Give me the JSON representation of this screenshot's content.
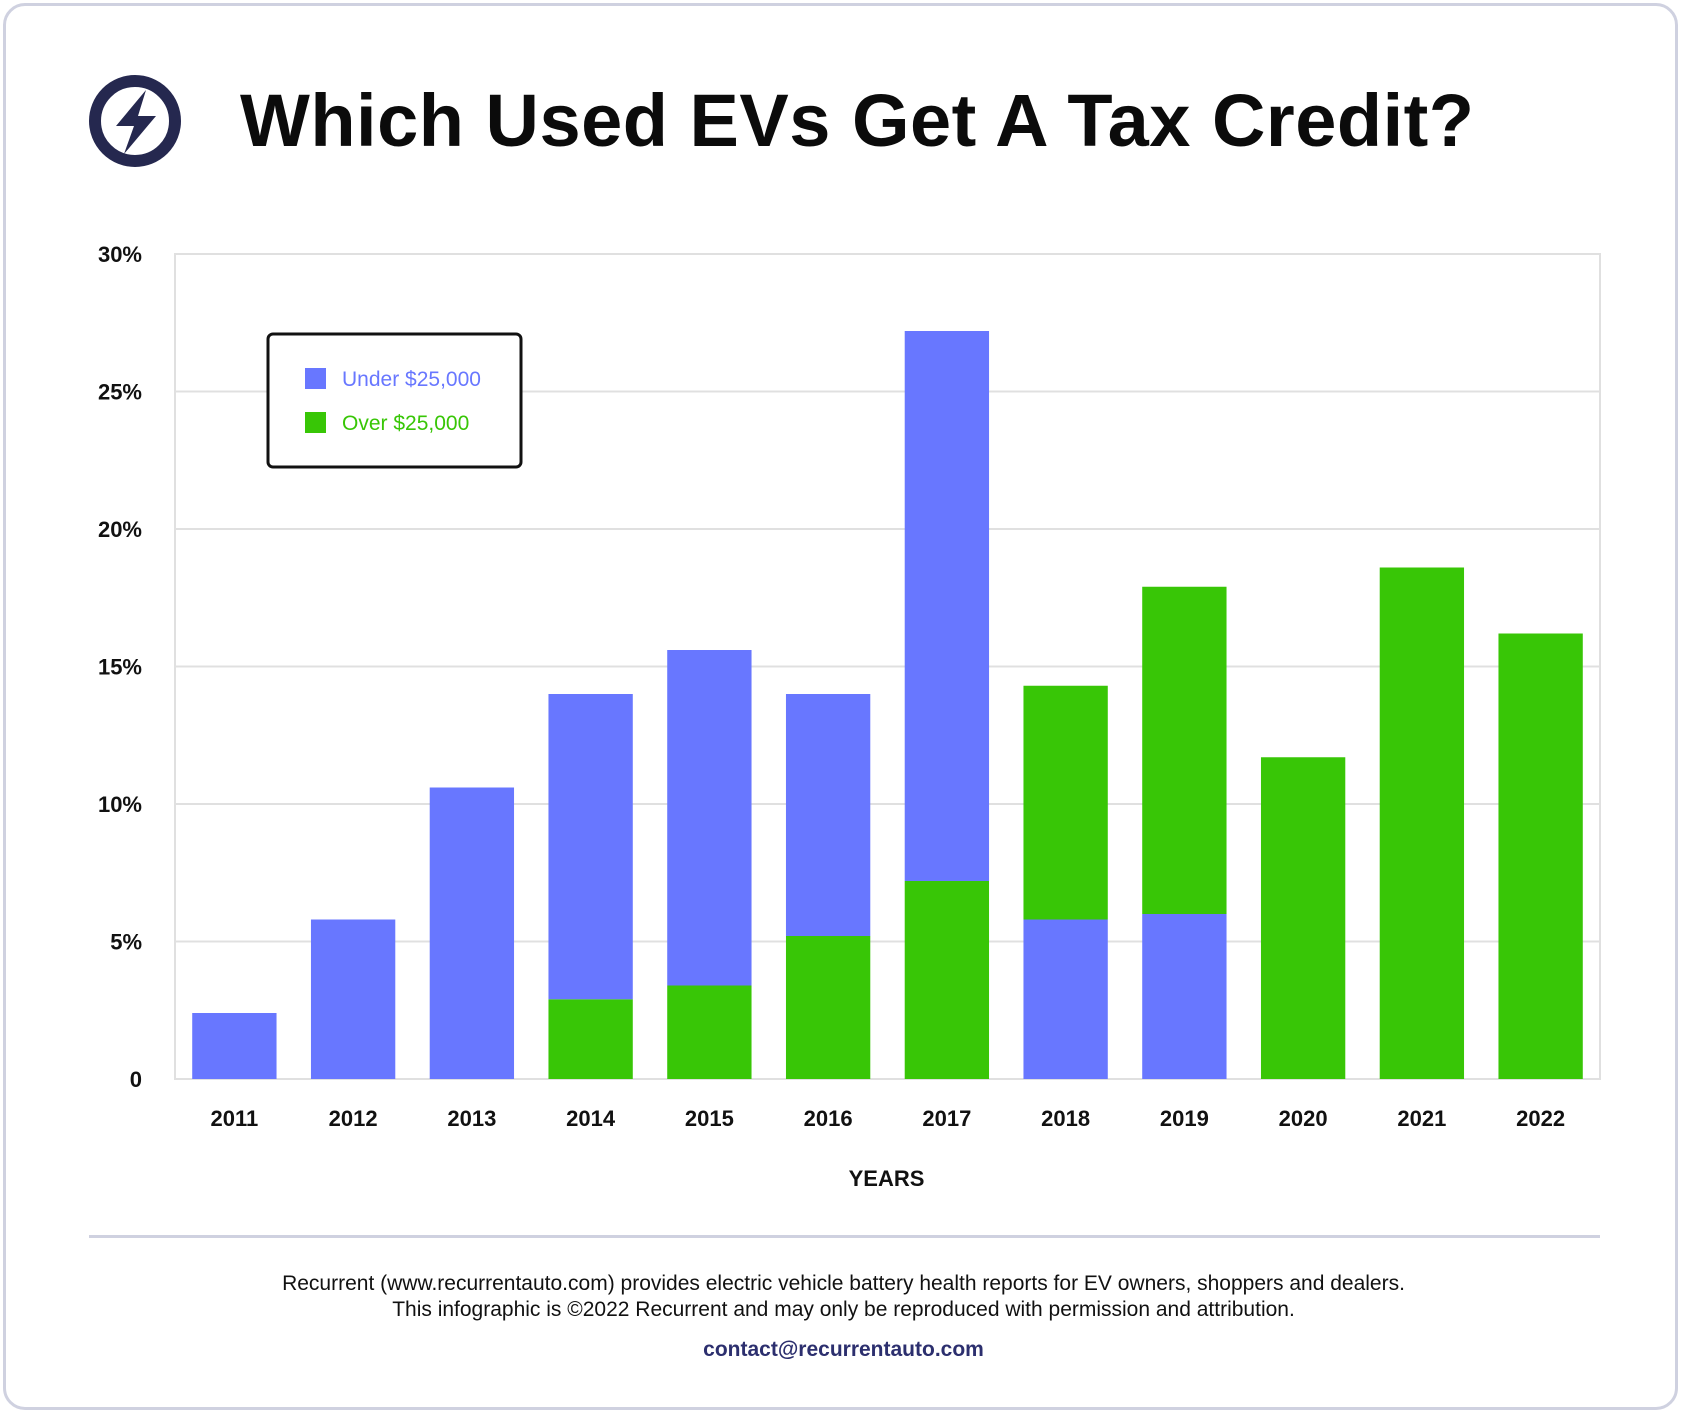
{
  "header": {
    "title": "Which Used EVs Get A Tax Credit?",
    "logo_icon": "lightning-bolt-icon"
  },
  "colors": {
    "under": "#6877ff",
    "over": "#38c606",
    "grid": "#e0e0e0",
    "text": "#111111",
    "logo": "#25284f"
  },
  "chart_data": {
    "type": "bar",
    "stacked": true,
    "categories": [
      "2011",
      "2012",
      "2013",
      "2014",
      "2015",
      "2016",
      "2017",
      "2018",
      "2019",
      "2020",
      "2021",
      "2022"
    ],
    "series_order_bottom_to_top": [
      [
        "under"
      ],
      [
        "under"
      ],
      [
        "under"
      ],
      [
        "over",
        "under"
      ],
      [
        "over",
        "under"
      ],
      [
        "over",
        "under"
      ],
      [
        "over",
        "under"
      ],
      [
        "under",
        "over"
      ],
      [
        "under",
        "over"
      ],
      [
        "over"
      ],
      [
        "over"
      ],
      [
        "over"
      ]
    ],
    "series": [
      {
        "key": "under",
        "name": "Under $25,000",
        "values": [
          2.4,
          5.8,
          10.6,
          11.1,
          12.2,
          8.8,
          20.0,
          5.8,
          6.0,
          0,
          0,
          0
        ]
      },
      {
        "key": "over",
        "name": "Over $25,000",
        "values": [
          0,
          0,
          0,
          2.9,
          3.4,
          5.2,
          7.2,
          8.5,
          11.9,
          11.7,
          18.6,
          16.2
        ]
      }
    ],
    "xlabel": "YEARS",
    "ylabel": "",
    "ylim": [
      0,
      30
    ],
    "yticks": [
      0,
      5,
      10,
      15,
      20,
      25,
      30
    ],
    "ytick_labels": [
      "0",
      "5%",
      "10%",
      "15%",
      "20%",
      "25%",
      "30%"
    ],
    "grid": true,
    "legend_position": "top-left"
  },
  "footer": {
    "line1": "Recurrent (www.recurrentauto.com) provides electric vehicle battery health reports for EV owners, shoppers and dealers.",
    "line2": "This infographic is ©2022 Recurrent and may only be reproduced with permission and attribution.",
    "contact": "contact@recurrentauto.com"
  }
}
